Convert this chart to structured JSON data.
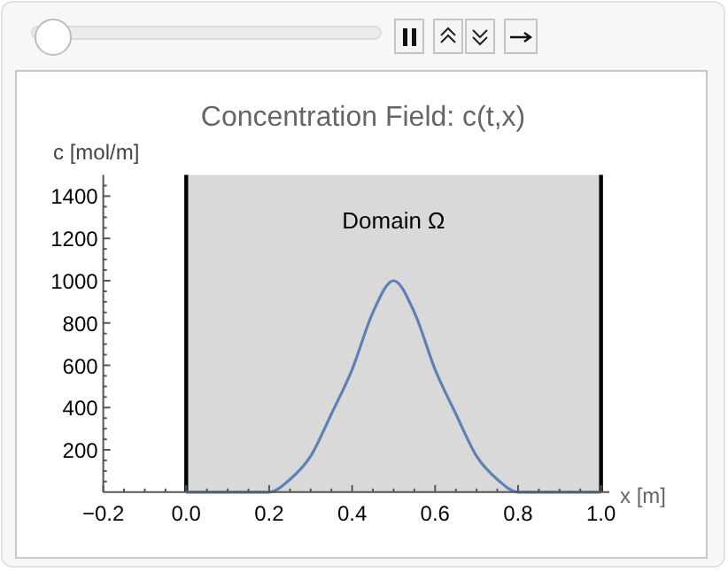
{
  "chart_data": {
    "type": "line",
    "title": "Concentration Field: c(t,x)",
    "xlabel": "x [m]",
    "ylabel": "c [mol/m]",
    "series": [
      {
        "color": "#5e81b5",
        "x": [
          0,
          0.1,
          0.2,
          0.25,
          0.3,
          0.35,
          0.4,
          0.45,
          0.5,
          0.55,
          0.6,
          0.65,
          0.7,
          0.75,
          0.8,
          0.9,
          1.0
        ],
        "values": [
          0,
          0,
          0,
          60,
          170,
          370,
          580,
          850,
          1000,
          850,
          580,
          370,
          170,
          60,
          0,
          0,
          0
        ]
      }
    ],
    "xlim": [
      -0.2,
      1.02
    ],
    "ylim": [
      0,
      1500
    ],
    "xticks": [
      -0.2,
      {
        "value": -0.15,
        "label": null
      },
      {
        "value": -0.1,
        "label": null
      },
      {
        "value": -0.05,
        "label": null
      },
      {
        "value": 0,
        "label": "0.0"
      },
      {
        "value": 0.05,
        "label": null
      },
      {
        "value": 0.1,
        "label": null
      },
      {
        "value": 0.15,
        "label": null
      },
      0.2,
      {
        "value": 0.25,
        "label": null
      },
      {
        "value": 0.3,
        "label": null
      },
      {
        "value": 0.35,
        "label": null
      },
      0.4,
      {
        "value": 0.45,
        "label": null
      },
      {
        "value": 0.5,
        "label": null
      },
      {
        "value": 0.55,
        "label": null
      },
      0.6,
      {
        "value": 0.65,
        "label": null
      },
      {
        "value": 0.7,
        "label": null
      },
      {
        "value": 0.75,
        "label": null
      },
      0.8,
      {
        "value": 0.85,
        "label": null
      },
      {
        "value": 0.9,
        "label": null
      },
      {
        "value": 0.95,
        "label": null
      },
      {
        "value": 1,
        "label": "1.0"
      }
    ],
    "yticks": [
      {
        "value": 50,
        "label": null
      },
      {
        "value": 100,
        "label": null
      },
      {
        "value": 150,
        "label": null
      },
      200,
      {
        "value": 250,
        "label": null
      },
      {
        "value": 300,
        "label": null
      },
      {
        "value": 350,
        "label": null
      },
      400,
      {
        "value": 450,
        "label": null
      },
      {
        "value": 500,
        "label": null
      },
      {
        "value": 550,
        "label": null
      },
      600,
      {
        "value": 650,
        "label": null
      },
      {
        "value": 700,
        "label": null
      },
      {
        "value": 750,
        "label": null
      },
      800,
      {
        "value": 850,
        "label": null
      },
      {
        "value": 900,
        "label": null
      },
      {
        "value": 950,
        "label": null
      },
      1000,
      {
        "value": 1050,
        "label": null
      },
      {
        "value": 1100,
        "label": null
      },
      {
        "value": 1150,
        "label": null
      },
      1200,
      {
        "value": 1250,
        "label": null
      },
      {
        "value": 1300,
        "label": null
      },
      {
        "value": 1350,
        "label": null
      },
      1400,
      {
        "value": 1450,
        "label": null
      }
    ],
    "bands": [
      {
        "axis": "x",
        "from": 0,
        "to": 1,
        "label": "Domain Ω",
        "color": "#d9d9d9"
      }
    ],
    "ref_lines": [
      {
        "axis": "x",
        "value": 0,
        "color": "#000000"
      },
      {
        "axis": "x",
        "value": 1,
        "color": "#000000"
      }
    ],
    "grid": false
  }
}
